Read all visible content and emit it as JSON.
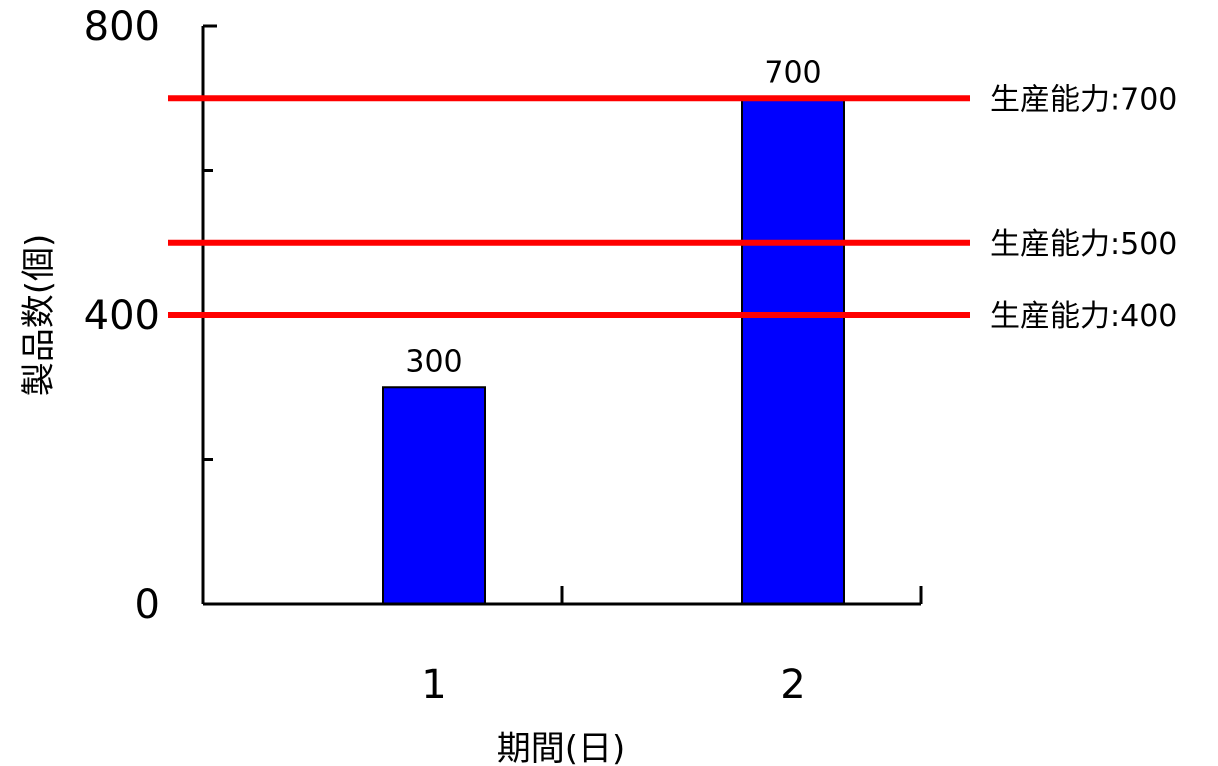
{
  "chart_data": {
    "type": "bar",
    "categories": [
      "1",
      "2"
    ],
    "values": [
      300,
      700
    ],
    "data_labels": [
      "300",
      "700"
    ],
    "xlabel": "期間(日)",
    "ylabel": "製品数(個)",
    "ylim": [
      0,
      800
    ],
    "yticks": [
      0,
      400,
      800
    ],
    "ytick_labels": [
      "0",
      "400",
      "800"
    ],
    "minor_yticks": [
      200,
      600
    ],
    "grid": false,
    "reference_lines": [
      {
        "value": 700,
        "label": "生産能力:700"
      },
      {
        "value": 500,
        "label": "生産能力:500"
      },
      {
        "value": 400,
        "label": "生産能力:400"
      }
    ],
    "colors": {
      "bar": "#0000ff",
      "bar_edge": "#000000",
      "reference_line": "#ff0000",
      "axis": "#000000"
    }
  }
}
